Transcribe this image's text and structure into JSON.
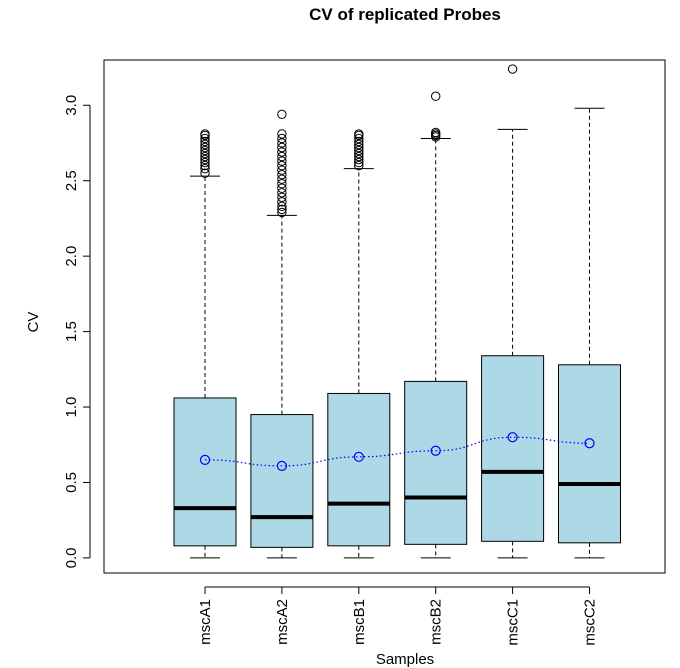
{
  "chart_data": {
    "type": "box",
    "title": "CV of replicated Probes",
    "xlabel": "Samples",
    "ylabel": "CV",
    "ylim": [
      -0.1,
      3.3
    ],
    "yticks": [
      0.0,
      0.5,
      1.0,
      1.5,
      2.0,
      2.5,
      3.0
    ],
    "ytick_labels": [
      "0.0",
      "0.5",
      "1.0",
      "1.5",
      "2.0",
      "2.5",
      "3.0"
    ],
    "categories": [
      "mscA1",
      "mscA2",
      "mscB1",
      "mscB2",
      "mscC1",
      "mscC2"
    ],
    "boxes": [
      {
        "name": "mscA1",
        "whisker_low": 0.0,
        "q1": 0.08,
        "median": 0.33,
        "q3": 1.06,
        "whisker_high": 2.53,
        "outliers": [
          2.55,
          2.58,
          2.6,
          2.62,
          2.64,
          2.66,
          2.68,
          2.7,
          2.72,
          2.74,
          2.76,
          2.78,
          2.8,
          2.81
        ]
      },
      {
        "name": "mscA2",
        "whisker_low": 0.0,
        "q1": 0.07,
        "median": 0.27,
        "q3": 0.95,
        "whisker_high": 2.27,
        "outliers": [
          2.29,
          2.31,
          2.33,
          2.36,
          2.39,
          2.42,
          2.45,
          2.48,
          2.51,
          2.54,
          2.57,
          2.6,
          2.63,
          2.66,
          2.69,
          2.72,
          2.75,
          2.78,
          2.81,
          2.94
        ]
      },
      {
        "name": "mscB1",
        "whisker_low": 0.0,
        "q1": 0.08,
        "median": 0.36,
        "q3": 1.09,
        "whisker_high": 2.58,
        "outliers": [
          2.6,
          2.62,
          2.64,
          2.66,
          2.68,
          2.7,
          2.72,
          2.74,
          2.76,
          2.78,
          2.8,
          2.81
        ]
      },
      {
        "name": "mscB2",
        "whisker_low": 0.0,
        "q1": 0.09,
        "median": 0.4,
        "q3": 1.17,
        "whisker_high": 2.78,
        "outliers": [
          2.79,
          2.8,
          2.81,
          2.82,
          3.06
        ]
      },
      {
        "name": "mscC1",
        "whisker_low": 0.0,
        "q1": 0.11,
        "median": 0.57,
        "q3": 1.34,
        "whisker_high": 2.84,
        "outliers": [
          3.24
        ]
      },
      {
        "name": "mscC2",
        "whisker_low": 0.0,
        "q1": 0.1,
        "median": 0.49,
        "q3": 1.28,
        "whisker_high": 2.98,
        "outliers": []
      }
    ],
    "means": [
      0.65,
      0.61,
      0.67,
      0.71,
      0.8,
      0.76
    ],
    "colors": {
      "box_fill": "#add8e6",
      "mean": "#0000ff",
      "line": "#000000"
    },
    "grid": false,
    "legend": "none"
  }
}
